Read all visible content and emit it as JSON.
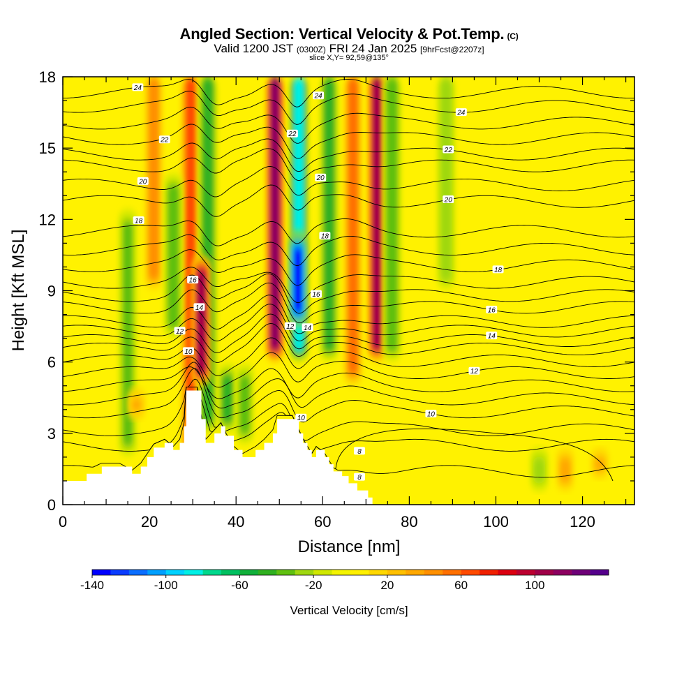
{
  "header": {
    "title": "Angled Section: Vertical Velocity & Pot.Temp.",
    "title_units": "(C)",
    "valid_prefix": "Valid 1200 JST",
    "valid_z": "(0300Z)",
    "valid_date": "FRI 24 Jan 2025",
    "valid_fcst": "[9hrFcst@2207z]",
    "slice": "slice X,Y= 92,59@135°"
  },
  "chart_data": {
    "type": "heatmap",
    "title": "Angled Section: Vertical Velocity & Pot.Temp.",
    "xlabel": "Distance [nm]",
    "ylabel": "Height [Kft MSL]",
    "xlim": [
      0,
      132
    ],
    "ylim": [
      0,
      18
    ],
    "x_ticks": [
      "0",
      "20",
      "40",
      "60",
      "80",
      "100",
      "120"
    ],
    "y_ticks": [
      "0",
      "3",
      "6",
      "9",
      "12",
      "15",
      "18"
    ],
    "colorbar": {
      "label": "Vertical Velocity [cm/s]",
      "min": -140,
      "max": 140,
      "step": 10,
      "tick_labels": [
        "-140",
        "-100",
        "-60",
        "-20",
        "20",
        "60",
        "100"
      ],
      "colors": [
        "#0000ff",
        "#0a3cff",
        "#0a6eff",
        "#00a0ff",
        "#00d2ff",
        "#00f0e6",
        "#00d88c",
        "#00c060",
        "#10b03a",
        "#30b020",
        "#60c010",
        "#a0d810",
        "#d0e800",
        "#f4f400",
        "#fff000",
        "#ffd800",
        "#ffc000",
        "#ffa800",
        "#ff9000",
        "#ff7000",
        "#ff4a00",
        "#f02000",
        "#dc0010",
        "#bc0030",
        "#a00048",
        "#8c0060",
        "#6e0078",
        "#55008c"
      ]
    },
    "velocity_features": [
      {
        "x": 29.5,
        "bottom": 0,
        "top": 18,
        "value": 60,
        "kind": "updraft"
      },
      {
        "x": 33.5,
        "bottom": 3,
        "top": 18,
        "value": -45,
        "kind": "downdraft"
      },
      {
        "x": 32,
        "bottom": 5,
        "top": 10.5,
        "value": 100,
        "kind": "updraft"
      },
      {
        "x": 49,
        "bottom": 6,
        "top": 18,
        "value": 110,
        "kind": "updraft"
      },
      {
        "x": 54.5,
        "bottom": 6,
        "top": 18,
        "value": -80,
        "kind": "downdraft"
      },
      {
        "x": 54.3,
        "bottom": 7.5,
        "top": 11.5,
        "value": -130,
        "kind": "downdraft"
      },
      {
        "x": 61.5,
        "bottom": 6,
        "top": 18,
        "value": -40,
        "kind": "downdraft"
      },
      {
        "x": 67,
        "bottom": 5,
        "top": 18,
        "value": 45,
        "kind": "updraft"
      },
      {
        "x": 72.5,
        "bottom": 6,
        "top": 18,
        "value": 95,
        "kind": "updraft"
      },
      {
        "x": 76,
        "bottom": 6,
        "top": 18,
        "value": -35,
        "kind": "downdraft"
      },
      {
        "x": 15,
        "bottom": 2,
        "top": 12.5,
        "value": -30,
        "kind": "downdraft"
      },
      {
        "x": 21,
        "bottom": 9,
        "top": 18,
        "value": 35,
        "kind": "updraft"
      },
      {
        "x": 25.5,
        "bottom": 7,
        "top": 14,
        "value": -35,
        "kind": "downdraft"
      },
      {
        "x": 17,
        "bottom": 3.5,
        "top": 5,
        "value": 30,
        "kind": "updraft"
      },
      {
        "x": 38,
        "bottom": 3,
        "top": 6,
        "value": -40,
        "kind": "downdraft"
      },
      {
        "x": 42,
        "bottom": 2.5,
        "top": 6,
        "value": -28,
        "kind": "downdraft"
      },
      {
        "x": 88.5,
        "bottom": 9,
        "top": 18,
        "value": -25,
        "kind": "downdraft"
      },
      {
        "x": 110,
        "bottom": 0.5,
        "top": 2.5,
        "value": -25,
        "kind": "downdraft"
      },
      {
        "x": 116,
        "bottom": 0.5,
        "top": 2.5,
        "value": 25,
        "kind": "updraft"
      },
      {
        "x": 124,
        "bottom": 1,
        "top": 2.5,
        "value": 25,
        "kind": "updraft"
      }
    ],
    "terrain": [
      {
        "x": 0,
        "h": 1.0
      },
      {
        "x": 5.5,
        "h": 1.3
      },
      {
        "x": 9,
        "h": 1.6
      },
      {
        "x": 13,
        "h": 1.6
      },
      {
        "x": 16,
        "h": 1.3
      },
      {
        "x": 18,
        "h": 1.6
      },
      {
        "x": 19.5,
        "h": 2.0
      },
      {
        "x": 21,
        "h": 2.4
      },
      {
        "x": 23.5,
        "h": 2.6
      },
      {
        "x": 25.5,
        "h": 2.3
      },
      {
        "x": 27,
        "h": 2.6
      },
      {
        "x": 28,
        "h": 3.3
      },
      {
        "x": 28.5,
        "h": 4.8
      },
      {
        "x": 31,
        "h": 4.8
      },
      {
        "x": 32,
        "h": 3.6
      },
      {
        "x": 33,
        "h": 2.6
      },
      {
        "x": 35,
        "h": 3.0
      },
      {
        "x": 36.5,
        "h": 3.3
      },
      {
        "x": 37.5,
        "h": 2.9
      },
      {
        "x": 39.5,
        "h": 2.3
      },
      {
        "x": 41.5,
        "h": 2.0
      },
      {
        "x": 44.5,
        "h": 2.3
      },
      {
        "x": 46.5,
        "h": 2.6
      },
      {
        "x": 48.5,
        "h": 3.0
      },
      {
        "x": 49.5,
        "h": 3.6
      },
      {
        "x": 53,
        "h": 3.6
      },
      {
        "x": 54.5,
        "h": 3.0
      },
      {
        "x": 55.5,
        "h": 2.6
      },
      {
        "x": 56.5,
        "h": 2.3
      },
      {
        "x": 57.5,
        "h": 2.0
      },
      {
        "x": 58.5,
        "h": 2.3
      },
      {
        "x": 60.5,
        "h": 2.0
      },
      {
        "x": 61.5,
        "h": 1.7
      },
      {
        "x": 62.5,
        "h": 1.4
      },
      {
        "x": 64.5,
        "h": 1.2
      },
      {
        "x": 66,
        "h": 0.9
      },
      {
        "x": 68,
        "h": 0.6
      },
      {
        "x": 70.5,
        "h": 0.3
      },
      {
        "x": 71.5,
        "h": 0
      }
    ],
    "isentropes": [
      {
        "label": "8",
        "base": 1.4,
        "lx": 68.5
      },
      {
        "label": "",
        "base": 2.5
      },
      {
        "label": "",
        "base": 3.15
      },
      {
        "label": "10",
        "base": 3.9,
        "lx": 85
      },
      {
        "label": "",
        "base": 4.45
      },
      {
        "label": "",
        "base": 5.0
      },
      {
        "label": "12",
        "base": 5.55,
        "lx": 95
      },
      {
        "label": "",
        "base": 6.05
      },
      {
        "label": "",
        "base": 6.55
      },
      {
        "label": "14",
        "base": 6.9,
        "lx": 99
      },
      {
        "label": "",
        "base": 7.3
      },
      {
        "label": "",
        "base": 7.7
      },
      {
        "label": "16",
        "base": 8.3,
        "lx": 99
      },
      {
        "label": "",
        "base": 8.8
      },
      {
        "label": "",
        "base": 9.35
      },
      {
        "label": "18",
        "base": 10.05,
        "lx": 100.5
      },
      {
        "label": "",
        "base": 10.75
      },
      {
        "label": "",
        "base": 11.5
      },
      {
        "label": "20",
        "base": 12.75,
        "lx": 89
      },
      {
        "label": "",
        "base": 13.45
      },
      {
        "label": "",
        "base": 14.25
      },
      {
        "label": "22",
        "base": 14.75,
        "lx": 89
      },
      {
        "label": "",
        "base": 15.4
      },
      {
        "label": "",
        "base": 16.05
      },
      {
        "label": "24",
        "base": 16.75,
        "lx": 92
      },
      {
        "label": "",
        "base": 17.35
      }
    ],
    "isentrope_labels": [
      {
        "text": "24",
        "x": 17.3,
        "y": 17.55
      },
      {
        "text": "22",
        "x": 23.5,
        "y": 15.35
      },
      {
        "text": "20",
        "x": 18.5,
        "y": 13.6
      },
      {
        "text": "18",
        "x": 17.5,
        "y": 11.95
      },
      {
        "text": "16",
        "x": 30,
        "y": 9.45
      },
      {
        "text": "14",
        "x": 31.5,
        "y": 8.3
      },
      {
        "text": "12",
        "x": 27,
        "y": 7.3
      },
      {
        "text": "10",
        "x": 29,
        "y": 6.45
      },
      {
        "text": "24",
        "x": 59,
        "y": 17.2
      },
      {
        "text": "22",
        "x": 53,
        "y": 15.6
      },
      {
        "text": "20",
        "x": 59.5,
        "y": 13.75
      },
      {
        "text": "18",
        "x": 60.5,
        "y": 11.3
      },
      {
        "text": "16",
        "x": 58.5,
        "y": 8.85
      },
      {
        "text": "12",
        "x": 52.5,
        "y": 7.5
      },
      {
        "text": "14",
        "x": 56.5,
        "y": 7.45
      },
      {
        "text": "10",
        "x": 55,
        "y": 3.65
      },
      {
        "text": "8",
        "x": 68.5,
        "y": 2.25
      }
    ]
  }
}
